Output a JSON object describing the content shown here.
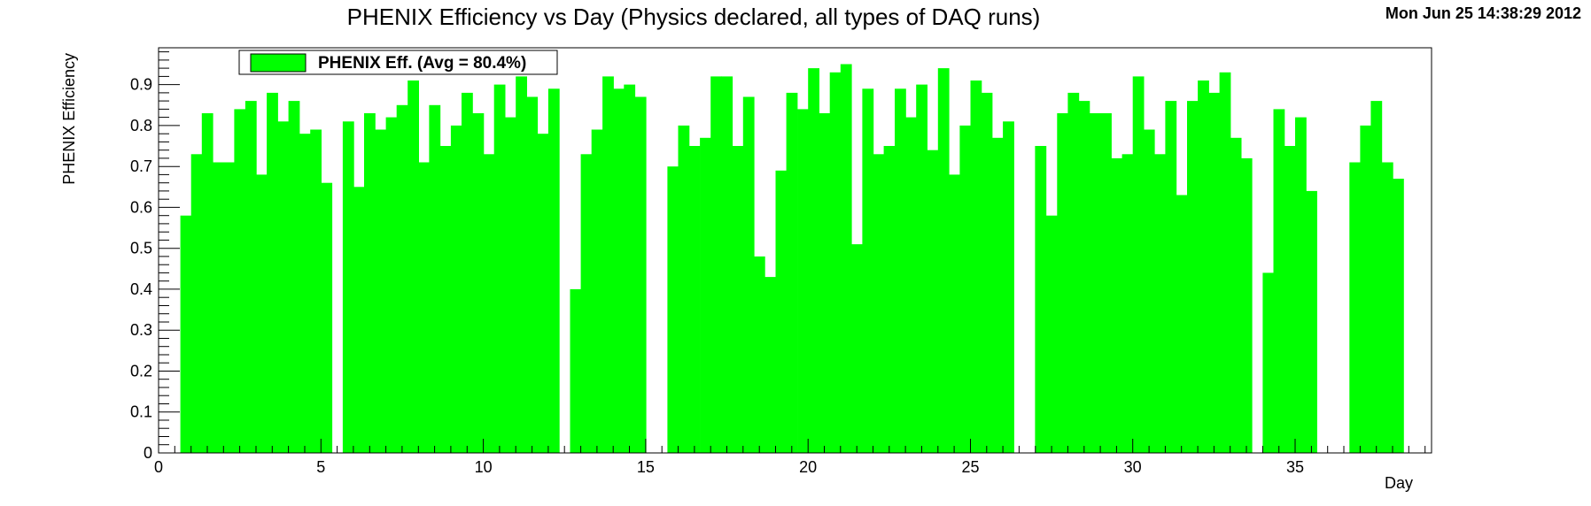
{
  "timestamp": "Mon Jun 25 14:38:29 2012",
  "colors": {
    "bar": "#00ff00",
    "frame": "#000000"
  },
  "chart_data": {
    "type": "bar",
    "title": "PHENIX Efficiency vs Day (Physics declared, all types of DAQ runs)",
    "xlabel": "Day",
    "ylabel": "PHENIX Efficiency",
    "xlim": [
      0,
      39.2
    ],
    "ylim": [
      0,
      0.99
    ],
    "bin_width": 0.333,
    "x_ticks": [
      0,
      5,
      10,
      15,
      20,
      25,
      30,
      35
    ],
    "x_tick_labels": [
      "0",
      "5",
      "10",
      "15",
      "20",
      "25",
      "30",
      "35"
    ],
    "y_ticks": [
      0,
      0.1,
      0.2,
      0.3,
      0.4,
      0.5,
      0.6,
      0.7,
      0.8,
      0.9
    ],
    "y_tick_labels": [
      "0",
      "0.1",
      "0.2",
      "0.3",
      "0.4",
      "0.5",
      "0.6",
      "0.7",
      "0.8",
      "0.9"
    ],
    "legend": {
      "label": "PHENIX Eff. (Avg =  80.4%)",
      "position": "top-left"
    },
    "series": [
      {
        "x": [
          0.67,
          1.0,
          1.33,
          1.67,
          2.0,
          2.33,
          2.67,
          3.0,
          3.33,
          3.67,
          4.0,
          4.33,
          4.67,
          5.0,
          5.67,
          6.0,
          6.33,
          6.67,
          7.0,
          7.33,
          7.67,
          8.0,
          8.33,
          8.67,
          9.0,
          9.33,
          9.67,
          10.0,
          10.33,
          10.67,
          11.0,
          11.33,
          11.67,
          12.0,
          12.67,
          13.0,
          13.33,
          13.67,
          14.0,
          14.33,
          14.67,
          15.67,
          16.0,
          16.33,
          16.67,
          17.0,
          17.33,
          17.67,
          18.0,
          18.33,
          18.67,
          19.0,
          19.33,
          19.67,
          20.0,
          20.33,
          20.67,
          21.0,
          21.33,
          21.67,
          22.0,
          22.33,
          22.67,
          23.0,
          23.33,
          23.67,
          24.0,
          24.33,
          24.67,
          25.0,
          25.33,
          25.67,
          26.0,
          26.99,
          27.33,
          27.67,
          28.0,
          28.33,
          28.67,
          29.0,
          29.33,
          29.67,
          30.0,
          30.33,
          30.67,
          31.0,
          31.33,
          31.67,
          32.0,
          32.33,
          32.67,
          33.0,
          33.33,
          34.0,
          34.33,
          34.67,
          35.0,
          35.33,
          36.67,
          37.0,
          37.33,
          37.67,
          38.0
        ],
        "values": [
          0.58,
          0.73,
          0.83,
          0.71,
          0.71,
          0.84,
          0.86,
          0.68,
          0.88,
          0.81,
          0.86,
          0.78,
          0.79,
          0.66,
          0.81,
          0.65,
          0.83,
          0.79,
          0.82,
          0.85,
          0.91,
          0.71,
          0.85,
          0.75,
          0.8,
          0.88,
          0.83,
          0.73,
          0.9,
          0.82,
          0.92,
          0.87,
          0.78,
          0.89,
          0.4,
          0.73,
          0.79,
          0.92,
          0.89,
          0.9,
          0.87,
          0.7,
          0.8,
          0.75,
          0.77,
          0.92,
          0.92,
          0.75,
          0.87,
          0.48,
          0.43,
          0.69,
          0.88,
          0.84,
          0.94,
          0.83,
          0.93,
          0.95,
          0.51,
          0.89,
          0.73,
          0.75,
          0.89,
          0.82,
          0.9,
          0.74,
          0.94,
          0.68,
          0.8,
          0.91,
          0.88,
          0.77,
          0.81,
          0.75,
          0.58,
          0.83,
          0.88,
          0.86,
          0.83,
          0.83,
          0.72,
          0.73,
          0.92,
          0.79,
          0.73,
          0.86,
          0.63,
          0.86,
          0.91,
          0.88,
          0.93,
          0.77,
          0.72,
          0.44,
          0.84,
          0.75,
          0.82,
          0.64,
          0.71,
          0.8,
          0.86,
          0.71,
          0.67
        ]
      }
    ]
  }
}
